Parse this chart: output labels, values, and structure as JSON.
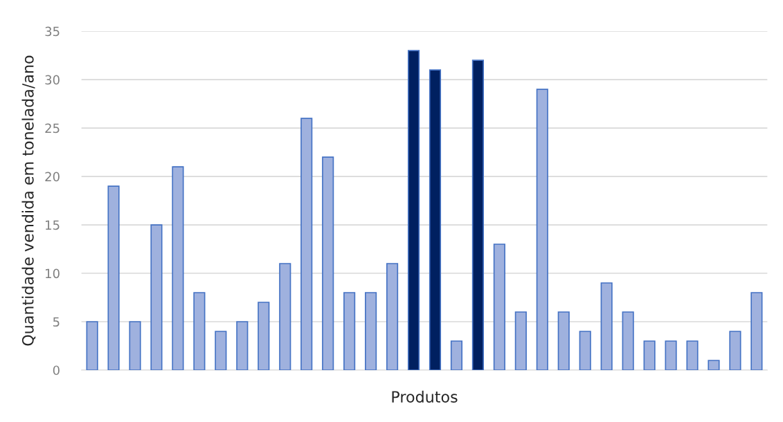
{
  "chart_data": {
    "type": "bar",
    "xlabel": "Produtos",
    "ylabel": "Quantidade vendida em tonelada/ano",
    "categories": [
      null,
      null,
      null,
      null,
      null,
      null,
      null,
      null,
      null,
      null,
      null,
      null,
      null,
      null,
      null,
      null,
      null,
      null,
      null,
      null,
      null,
      null,
      null,
      null,
      null,
      null,
      null,
      null,
      null,
      null,
      null,
      null
    ],
    "values": [
      5,
      19,
      5,
      15,
      21,
      8,
      4,
      5,
      7,
      11,
      26,
      22,
      8,
      8,
      11,
      33,
      31,
      3,
      32,
      13,
      6,
      29,
      6,
      4,
      9,
      6,
      3,
      3,
      3,
      1,
      4,
      8
    ],
    "colors": [
      "#9fb1de",
      "#9fb1de",
      "#9fb1de",
      "#9fb1de",
      "#9fb1de",
      "#9fb1de",
      "#9fb1de",
      "#9fb1de",
      "#9fb1de",
      "#9fb1de",
      "#9fb1de",
      "#9fb1de",
      "#9fb1de",
      "#9fb1de",
      "#9fb1de",
      "#002060",
      "#002060",
      "#9fb1de",
      "#002060",
      "#9fb1de",
      "#9fb1de",
      "#9fb1de",
      "#9fb1de",
      "#9fb1de",
      "#9fb1de",
      "#9fb1de",
      "#9fb1de",
      "#9fb1de",
      "#9fb1de",
      "#9fb1de",
      "#9fb1de",
      "#9fb1de"
    ],
    "ylim": [
      0,
      35
    ],
    "yticks": [
      0,
      5,
      10,
      15,
      20,
      25,
      30,
      35
    ],
    "grid": "y",
    "legend": false
  }
}
